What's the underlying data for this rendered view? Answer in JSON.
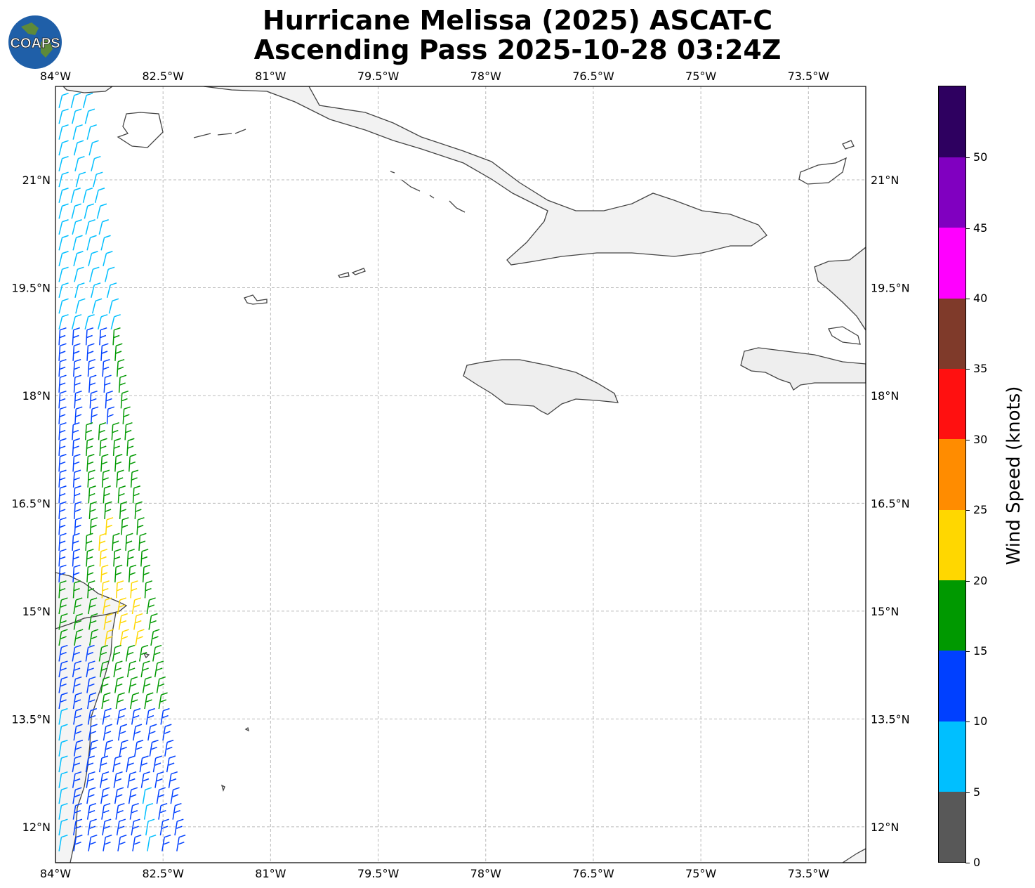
{
  "title": {
    "line1": "Hurricane Melissa (2025) ASCAT-C",
    "line2": "Ascending Pass 2025-10-28 03:24Z"
  },
  "logo": {
    "text": "COAPS",
    "icon": "globe-logo-icon"
  },
  "map": {
    "lon_range": [
      -84.0,
      -72.7
    ],
    "lat_range": [
      11.5,
      22.3
    ],
    "lon_ticks": [
      "84°W",
      "82.5°W",
      "81°W",
      "79.5°W",
      "78°W",
      "76.5°W",
      "75°W",
      "73.5°W"
    ],
    "lat_ticks": [
      "21°N",
      "19.5°N",
      "18°N",
      "16.5°N",
      "15°N",
      "13.5°N",
      "12°N"
    ],
    "gridline_style": "dashed",
    "land_shading": "grey terrain"
  },
  "colorbar": {
    "label": "Wind Speed (knots)",
    "ticks": [
      "0",
      "5",
      "10",
      "15",
      "20",
      "25",
      "30",
      "35",
      "40",
      "45",
      "50"
    ],
    "colors": [
      "#585858",
      "#00bfff",
      "#0040ff",
      "#009900",
      "#ffd700",
      "#ff8c00",
      "#ff1010",
      "#7f3a2a",
      "#ff00ff",
      "#8000c0",
      "#2e0060"
    ]
  },
  "wind_swath": {
    "description_colors": {
      "5-10": "#00bfff",
      "10-15": "#0040ff",
      "15-20": "#009900",
      "20-25": "#ffd700",
      "25-30": "#ff8c00"
    }
  }
}
